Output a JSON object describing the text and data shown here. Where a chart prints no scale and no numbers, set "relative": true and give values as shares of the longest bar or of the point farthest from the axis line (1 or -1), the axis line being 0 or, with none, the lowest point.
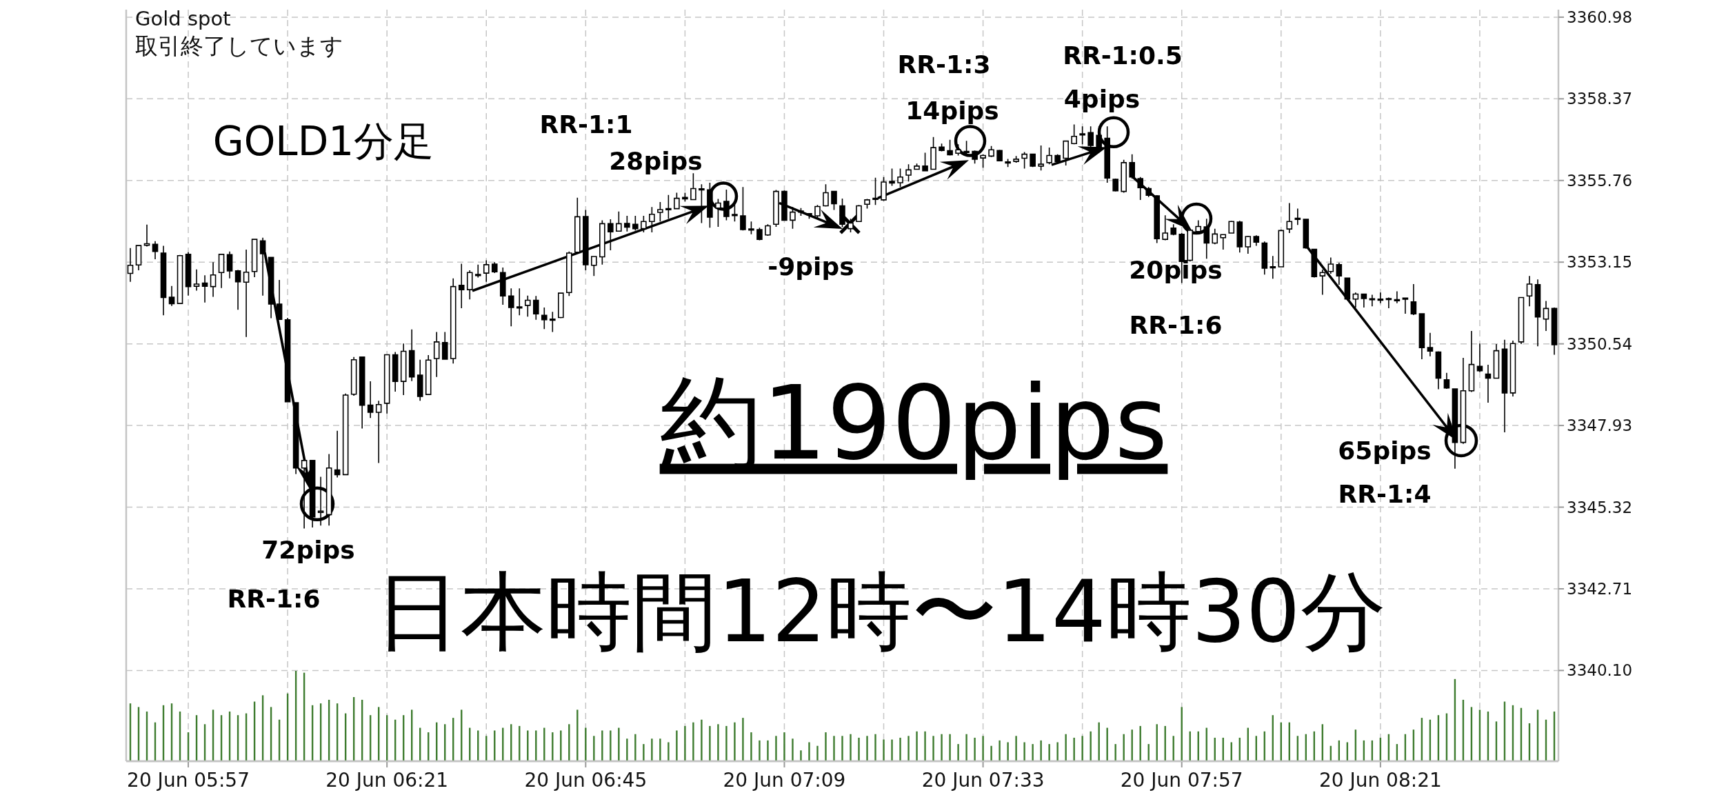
{
  "chart_data": [
    {
      "type": "candlestick",
      "title": "Gold spot",
      "subtitle": "取引終了しています",
      "categories": [
        null,
        null,
        null,
        null,
        null,
        null,
        null,
        "20 Jun 05:57",
        null,
        null,
        null,
        null,
        null,
        null,
        null,
        null,
        null,
        null,
        null,
        null,
        null,
        null,
        null,
        null,
        null,
        null,
        null,
        null,
        null,
        null,
        null,
        "20 Jun 06:21",
        null,
        null,
        null,
        null,
        null,
        null,
        null,
        null,
        null,
        null,
        null,
        null,
        null,
        null,
        null,
        null,
        null,
        null,
        null,
        null,
        null,
        null,
        null,
        "20 Jun 06:45",
        null,
        null,
        null,
        null,
        null,
        null,
        null,
        null,
        null,
        null,
        null,
        null,
        null,
        null,
        null,
        null,
        null,
        null,
        null,
        null,
        null,
        null,
        null,
        "20 Jun 07:09",
        null,
        null,
        null,
        null,
        null,
        null,
        null,
        null,
        null,
        null,
        null,
        null,
        null,
        null,
        null,
        null,
        null,
        null,
        null,
        null,
        null,
        null,
        null,
        "20 Jun 07:33",
        null,
        null,
        null,
        null,
        null,
        null,
        null,
        null,
        null,
        null,
        null,
        null,
        null,
        null,
        null,
        null,
        null,
        null,
        null,
        null,
        null,
        null,
        null,
        "20 Jun 07:57",
        null,
        null,
        null,
        null,
        null,
        null,
        null,
        null,
        null,
        null,
        null,
        null,
        null,
        null,
        null,
        null,
        null,
        null,
        null,
        null,
        null,
        null,
        null,
        "20 Jun 08:21",
        null,
        null,
        null,
        null,
        null,
        null,
        null,
        null,
        null,
        null,
        null,
        null,
        null,
        null,
        null,
        null,
        null,
        null,
        null,
        null,
        null
      ],
      "ohlc": [
        [
          3352.79,
          3353.6,
          3352.52,
          3353.05
        ],
        [
          3353.06,
          3353.68,
          3352.89,
          3353.68
        ],
        [
          3353.69,
          3354.35,
          3353.65,
          3353.74
        ],
        [
          3353.72,
          3353.82,
          3353.24,
          3353.49
        ],
        [
          3353.44,
          3353.67,
          3351.45,
          3352.02
        ],
        [
          3352.03,
          3352.39,
          3351.75,
          3351.82
        ],
        [
          3351.83,
          3353.38,
          3351.83,
          3353.36
        ],
        [
          3353.4,
          3353.47,
          3352.08,
          3352.37
        ],
        [
          3352.38,
          3352.92,
          3352.24,
          3352.45
        ],
        [
          3352.48,
          3352.73,
          3351.86,
          3352.38
        ],
        [
          3352.37,
          3353.15,
          3352.04,
          3352.74
        ],
        [
          3352.82,
          3353.4,
          3352.32,
          3353.4
        ],
        [
          3353.39,
          3353.49,
          3352.63,
          3352.87
        ],
        [
          3352.87,
          3352.9,
          3351.63,
          3352.52
        ],
        [
          3352.51,
          3353.55,
          3350.76,
          3352.83
        ],
        [
          3352.85,
          3353.9,
          3352.67,
          3353.88
        ],
        [
          3353.83,
          3353.93,
          3352.08,
          3353.42
        ],
        [
          3353.3,
          3353.3,
          3351.36,
          3351.81
        ],
        [
          3351.81,
          3352.58,
          3351.32,
          3351.32
        ],
        [
          3351.31,
          3351.37,
          3348.67,
          3348.69
        ],
        [
          3348.66,
          3348.67,
          3346.38,
          3346.57
        ],
        [
          3346.57,
          3346.91,
          3344.64,
          3346.81
        ],
        [
          3346.81,
          3346.82,
          3344.67,
          3345.01
        ],
        [
          3345.15,
          3346.29,
          3344.73,
          3345.19
        ],
        [
          3345.08,
          3347.02,
          3344.73,
          3346.57
        ],
        [
          3346.51,
          3347.76,
          3346.27,
          3346.36
        ],
        [
          3346.36,
          3348.95,
          3346.36,
          3348.9
        ],
        [
          3348.93,
          3350.12,
          3348.88,
          3350.03
        ],
        [
          3350.12,
          3350.12,
          3347.83,
          3348.58
        ],
        [
          3348.58,
          3349.34,
          3348.17,
          3348.35
        ],
        [
          3348.35,
          3348.72,
          3346.73,
          3348.6
        ],
        [
          3348.64,
          3350.2,
          3348.31,
          3350.19
        ],
        [
          3350.19,
          3350.28,
          3349.01,
          3349.34
        ],
        [
          3349.34,
          3350.55,
          3348.9,
          3350.3
        ],
        [
          3350.32,
          3351.0,
          3349.35,
          3349.48
        ],
        [
          3349.54,
          3350.03,
          3348.72,
          3348.86
        ],
        [
          3348.92,
          3350.18,
          3348.92,
          3350.02
        ],
        [
          3350.07,
          3350.92,
          3349.48,
          3350.6
        ],
        [
          3350.58,
          3350.92,
          3350.05,
          3350.05
        ],
        [
          3350.07,
          3352.63,
          3349.91,
          3352.37
        ],
        [
          3352.41,
          3353.1,
          3351.68,
          3352.27
        ],
        [
          3352.27,
          3352.89,
          3351.96,
          3352.82
        ],
        [
          3352.73,
          3353.07,
          3352.66,
          3352.75
        ],
        [
          3352.8,
          3353.21,
          3352.52,
          3353.07
        ],
        [
          3353.09,
          3353.15,
          3352.8,
          3352.84
        ],
        [
          3352.82,
          3352.98,
          3351.79,
          3352.07
        ],
        [
          3352.07,
          3352.31,
          3351.1,
          3351.7
        ],
        [
          3351.71,
          3352.31,
          3351.45,
          3351.7
        ],
        [
          3351.77,
          3352.08,
          3351.41,
          3351.93
        ],
        [
          3351.93,
          3352.07,
          3351.31,
          3351.5
        ],
        [
          3351.45,
          3351.7,
          3351.01,
          3351.31
        ],
        [
          3351.31,
          3351.56,
          3350.92,
          3351.31
        ],
        [
          3351.38,
          3352.16,
          3351.36,
          3352.16
        ],
        [
          3352.18,
          3353.49,
          3352.07,
          3353.44
        ],
        [
          3353.47,
          3355.21,
          3353.44,
          3354.6
        ],
        [
          3354.61,
          3354.82,
          3352.89,
          3353.07
        ],
        [
          3353.05,
          3353.33,
          3352.71,
          3353.33
        ],
        [
          3353.32,
          3354.49,
          3353.07,
          3354.38
        ],
        [
          3354.38,
          3354.52,
          3353.53,
          3354.12
        ],
        [
          3354.14,
          3354.77,
          3354.13,
          3354.38
        ],
        [
          3354.39,
          3354.63,
          3354.13,
          3354.27
        ],
        [
          3354.36,
          3354.63,
          3354.16,
          3354.22
        ],
        [
          3354.22,
          3354.63,
          3354.1,
          3354.45
        ],
        [
          3354.45,
          3354.91,
          3354.1,
          3354.68
        ],
        [
          3354.74,
          3355.07,
          3354.45,
          3354.83
        ],
        [
          3354.84,
          3355.3,
          3354.54,
          3354.85
        ],
        [
          3354.86,
          3355.37,
          3354.86,
          3355.19
        ],
        [
          3355.22,
          3355.37,
          3355.09,
          3355.17
        ],
        [
          3355.15,
          3355.99,
          3355.14,
          3355.5
        ],
        [
          3355.48,
          3355.64,
          3354.4,
          3355.47
        ],
        [
          3355.46,
          3355.69,
          3354.25,
          3354.59
        ],
        [
          3354.88,
          3355.17,
          3354.28,
          3355.04
        ],
        [
          3355.09,
          3355.47,
          3354.49,
          3354.61
        ],
        [
          3354.66,
          3355.0,
          3354.45,
          3354.65
        ],
        [
          3354.63,
          3355.55,
          3354.16,
          3354.19
        ],
        [
          3354.2,
          3354.45,
          3354.04,
          3354.19
        ],
        [
          3354.19,
          3354.25,
          3353.85,
          3353.88
        ],
        [
          3354.02,
          3354.36,
          3353.99,
          3354.31
        ],
        [
          3354.36,
          3355.46,
          3354.28,
          3355.41
        ],
        [
          3355.41,
          3355.44,
          3354.47,
          3354.49
        ],
        [
          3354.49,
          3354.91,
          3354.22,
          3354.75
        ],
        [
          3354.76,
          3354.88,
          3354.63,
          3354.77
        ],
        [
          3354.69,
          3354.72,
          3354.54,
          3354.68
        ],
        [
          3354.63,
          3354.98,
          3354.54,
          3354.93
        ],
        [
          3354.95,
          3355.64,
          3354.93,
          3355.37
        ],
        [
          3355.41,
          3355.41,
          3354.82,
          3355.02
        ],
        [
          3354.95,
          3355.18,
          3354.27,
          3354.36
        ],
        [
          3354.22,
          3354.54,
          3354.1,
          3354.4
        ],
        [
          3354.45,
          3354.98,
          3354.43,
          3354.95
        ],
        [
          3355.0,
          3355.17,
          3354.86,
          3355.14
        ],
        [
          3355.17,
          3355.85,
          3354.98,
          3355.18
        ],
        [
          3355.14,
          3355.87,
          3355.11,
          3355.71
        ],
        [
          3355.73,
          3356.14,
          3355.59,
          3355.68
        ],
        [
          3355.69,
          3356.14,
          3355.55,
          3355.87
        ],
        [
          3355.93,
          3356.28,
          3355.73,
          3356.1
        ],
        [
          3356.12,
          3356.3,
          3356.1,
          3356.22
        ],
        [
          3356.22,
          3356.65,
          3356.05,
          3356.07
        ],
        [
          3356.12,
          3357.15,
          3356.1,
          3356.81
        ],
        [
          3356.83,
          3356.94,
          3356.69,
          3356.72
        ],
        [
          3356.71,
          3357.06,
          3356.56,
          3356.58
        ],
        [
          3356.63,
          3356.92,
          3356.56,
          3356.74
        ],
        [
          3356.67,
          3357.03,
          3356.6,
          3356.67
        ],
        [
          3356.69,
          3356.72,
          3356.3,
          3356.44
        ],
        [
          3356.48,
          3356.6,
          3356.17,
          3356.56
        ],
        [
          3356.54,
          3356.86,
          3356.51,
          3356.74
        ],
        [
          3356.72,
          3356.74,
          3356.37,
          3356.39
        ],
        [
          3356.34,
          3356.45,
          3356.19,
          3356.33
        ],
        [
          3356.37,
          3356.54,
          3356.33,
          3356.44
        ],
        [
          3356.47,
          3356.67,
          3356.14,
          3356.6
        ],
        [
          3356.6,
          3356.62,
          3356.19,
          3356.22
        ],
        [
          3356.22,
          3356.88,
          3356.08,
          3356.28
        ],
        [
          3356.33,
          3356.81,
          3356.28,
          3356.56
        ],
        [
          3356.56,
          3356.6,
          3356.33,
          3356.36
        ],
        [
          3356.47,
          3357.02,
          3356.24,
          3357.02
        ],
        [
          3356.94,
          3357.55,
          3356.92,
          3357.17
        ],
        [
          3357.22,
          3357.49,
          3356.92,
          3357.25
        ],
        [
          3357.29,
          3357.49,
          3356.83,
          3356.88
        ],
        [
          3357.2,
          3357.49,
          3356.65,
          3356.83
        ],
        [
          3357.11,
          3357.49,
          3355.69,
          3355.84
        ],
        [
          3355.8,
          3355.82,
          3355.41,
          3355.43
        ],
        [
          3355.41,
          3356.42,
          3355.37,
          3356.33
        ],
        [
          3356.33,
          3356.6,
          3355.82,
          3355.87
        ],
        [
          3355.82,
          3355.87,
          3355.14,
          3355.53
        ],
        [
          3355.5,
          3355.55,
          3355.23,
          3355.29
        ],
        [
          3355.27,
          3355.29,
          3353.76,
          3353.9
        ],
        [
          3353.88,
          3354.65,
          3353.85,
          3354.08
        ],
        [
          3354.24,
          3354.36,
          3354.01,
          3354.04
        ],
        [
          3354.04,
          3354.08,
          3352.48,
          3353.17
        ],
        [
          3353.21,
          3354.22,
          3353.17,
          3354.17
        ],
        [
          3354.13,
          3354.49,
          3354.08,
          3354.29
        ],
        [
          3354.28,
          3354.54,
          3353.26,
          3353.76
        ],
        [
          3353.76,
          3354.22,
          3353.72,
          3354.05
        ],
        [
          3353.93,
          3354.03,
          3353.55,
          3354.03
        ],
        [
          3354.08,
          3354.47,
          3354.08,
          3354.45
        ],
        [
          3354.43,
          3354.47,
          3353.46,
          3353.64
        ],
        [
          3353.64,
          3353.99,
          3353.42,
          3353.97
        ],
        [
          3353.97,
          3354.01,
          3353.67,
          3353.79
        ],
        [
          3353.76,
          3353.81,
          3352.75,
          3352.96
        ],
        [
          3352.99,
          3353.35,
          3352.62,
          3352.98
        ],
        [
          3353.0,
          3354.19,
          3353.0,
          3354.16
        ],
        [
          3354.21,
          3355.04,
          3354.08,
          3354.45
        ],
        [
          3354.53,
          3354.86,
          3354.34,
          3354.54
        ],
        [
          3354.52,
          3354.54,
          3353.58,
          3353.61
        ],
        [
          3353.56,
          3353.58,
          3352.66,
          3352.69
        ],
        [
          3352.71,
          3352.91,
          3352.11,
          3352.82
        ],
        [
          3352.85,
          3353.3,
          3352.78,
          3353.09
        ],
        [
          3353.07,
          3353.13,
          3352.43,
          3352.71
        ],
        [
          3352.64,
          3352.66,
          3351.93,
          3351.97
        ],
        [
          3351.97,
          3352.18,
          3351.7,
          3352.13
        ],
        [
          3352.13,
          3352.13,
          3351.7,
          3351.99
        ],
        [
          3351.97,
          3352.11,
          3351.74,
          3351.96
        ],
        [
          3351.95,
          3352.18,
          3351.84,
          3351.95
        ],
        [
          3351.97,
          3352.02,
          3351.68,
          3351.97
        ],
        [
          3351.94,
          3352.22,
          3351.84,
          3351.93
        ],
        [
          3352.0,
          3352.02,
          3351.5,
          3351.97
        ],
        [
          3351.88,
          3352.45,
          3351.46,
          3351.5
        ],
        [
          3351.5,
          3351.52,
          3350.05,
          3350.42
        ],
        [
          3350.42,
          3350.89,
          3350.14,
          3350.31
        ],
        [
          3350.28,
          3350.3,
          3349.09,
          3349.44
        ],
        [
          3349.39,
          3349.61,
          3349.1,
          3349.13
        ],
        [
          3349.1,
          3349.1,
          3346.55,
          3347.39
        ],
        [
          3347.39,
          3350.09,
          3347.34,
          3349.04
        ],
        [
          3349.04,
          3350.95,
          3349.0,
          3349.88
        ],
        [
          3349.82,
          3350.55,
          3349.64,
          3349.68
        ],
        [
          3349.57,
          3349.87,
          3348.66,
          3349.44
        ],
        [
          3349.44,
          3350.53,
          3349.44,
          3350.32
        ],
        [
          3350.37,
          3350.67,
          3347.71,
          3348.97
        ],
        [
          3348.97,
          3350.64,
          3348.86,
          3350.55
        ],
        [
          3350.6,
          3352.02,
          3350.53,
          3352.02
        ],
        [
          3352.07,
          3352.71,
          3351.74,
          3352.45
        ],
        [
          3352.43,
          3352.6,
          3350.46,
          3351.4
        ],
        [
          3351.33,
          3351.91,
          3350.95,
          3351.67
        ],
        [
          3351.67,
          3351.7,
          3350.19,
          3350.51
        ]
      ],
      "colors": [
        "#ffffff",
        "#ffffff",
        "#ffffff",
        "#000000",
        "#000000",
        "#000000",
        "#ffffff",
        "#000000",
        "#ffffff",
        "#000000",
        "#ffffff",
        "#ffffff",
        "#000000",
        "#000000",
        "#ffffff",
        "#ffffff",
        "#000000",
        "#000000",
        "#000000",
        "#000000",
        "#000000",
        "#ffffff",
        "#000000",
        "#ffffff",
        "#ffffff",
        "#000000",
        "#ffffff",
        "#ffffff",
        "#000000",
        "#000000",
        "#ffffff",
        "#ffffff",
        "#000000",
        "#ffffff",
        "#000000",
        "#000000",
        "#ffffff",
        "#ffffff",
        "#000000",
        "#ffffff",
        "#000000",
        "#ffffff",
        "#ffffff",
        "#ffffff",
        "#000000",
        "#000000",
        "#000000",
        "#000000",
        "#ffffff",
        "#000000",
        "#000000",
        "#000000",
        "#ffffff",
        "#ffffff",
        "#ffffff",
        "#000000",
        "#ffffff",
        "#ffffff",
        "#000000",
        "#ffffff",
        "#000000",
        "#000000",
        "#ffffff",
        "#ffffff",
        "#ffffff",
        "#ffffff",
        "#ffffff",
        "#000000",
        "#ffffff",
        "#000000",
        "#000000",
        "#ffffff",
        "#000000",
        "#000000",
        "#000000",
        "#000000",
        "#000000",
        "#ffffff",
        "#ffffff",
        "#000000",
        "#ffffff",
        "#ffffff",
        "#000000",
        "#ffffff",
        "#ffffff",
        "#000000",
        "#000000",
        "#ffffff",
        "#ffffff",
        "#ffffff",
        "#ffffff",
        "#ffffff",
        "#000000",
        "#ffffff",
        "#ffffff",
        "#ffffff",
        "#000000",
        "#ffffff",
        "#000000",
        "#000000",
        "#ffffff",
        "#000000",
        "#000000",
        "#ffffff",
        "#ffffff",
        "#000000",
        "#000000",
        "#ffffff",
        "#ffffff",
        "#000000",
        "#ffffff",
        "#ffffff",
        "#000000",
        "#ffffff",
        "#ffffff",
        "#ffffff",
        "#000000",
        "#000000",
        "#000000",
        "#000000",
        "#ffffff",
        "#000000",
        "#000000",
        "#000000",
        "#000000",
        "#ffffff",
        "#000000",
        "#000000",
        "#ffffff",
        "#ffffff",
        "#000000",
        "#ffffff",
        "#ffffff",
        "#ffffff",
        "#000000",
        "#ffffff",
        "#000000",
        "#000000",
        "#000000",
        "#ffffff",
        "#ffffff",
        "#ffffff",
        "#000000",
        "#000000",
        "#ffffff",
        "#ffffff",
        "#000000",
        "#000000",
        "#ffffff",
        "#000000",
        "#000000",
        "#000000",
        "#000000",
        "#000000",
        "#000000",
        "#000000",
        "#000000",
        "#000000",
        "#000000",
        "#000000",
        "#000000",
        "#ffffff",
        "#ffffff",
        "#000000",
        "#000000",
        "#ffffff",
        "#000000",
        "#ffffff",
        "#ffffff",
        "#ffffff",
        "#000000",
        "#ffffff",
        "#000000"
      ],
      "ylim": [
        3337.2,
        3361.22
      ],
      "yticks": [
        {
          "value": 3340.1,
          "label": "3340.10"
        },
        3342.71,
        3345.32,
        3347.93,
        3350.54,
        3353.15,
        3355.76,
        3358.37,
        3360.98
      ],
      "grid": true,
      "annotations": [
        "GOLD1分足",
        "RR-1:1",
        "28pips",
        "RR-1:3",
        "14pips",
        "RR-1:0.5",
        "4pips",
        "-9pips",
        "20pips",
        "RR-1:6",
        "72pips",
        "RR-1:6",
        "65pips",
        "RR-1:4",
        "約190pips",
        "日本時間12時〜14時30分"
      ]
    },
    {
      "type": "bar",
      "relative": true,
      "color": "#3d7b2e",
      "categories": [
        null,
        null,
        null,
        null,
        null,
        null,
        null,
        null,
        null,
        null,
        null,
        null,
        null,
        null,
        null,
        null,
        null,
        null,
        null,
        null,
        null,
        null,
        null,
        null,
        null,
        null,
        null,
        null,
        null,
        null,
        null,
        null,
        null,
        null,
        null,
        null,
        null,
        null,
        null,
        null,
        null,
        null,
        null,
        null,
        null,
        null,
        null,
        null,
        null,
        null,
        null,
        null,
        null,
        null,
        null,
        null,
        null,
        null,
        null,
        null,
        null,
        null,
        null,
        null,
        null,
        null,
        null,
        null,
        null,
        null,
        null,
        null,
        null,
        null,
        null,
        null,
        null,
        null,
        null,
        null,
        null,
        null,
        null,
        null,
        null,
        null,
        null,
        null,
        null,
        null,
        null,
        null,
        null,
        null,
        null,
        null,
        null,
        null,
        null,
        null,
        null,
        null,
        null,
        null,
        null,
        null,
        null,
        null,
        null,
        null,
        null,
        null,
        null,
        null,
        null,
        null,
        null,
        null,
        null,
        null,
        null,
        null,
        null,
        null,
        null,
        null,
        null,
        null,
        null,
        null,
        null,
        null,
        null,
        null,
        null,
        null,
        null,
        null,
        null,
        null,
        null,
        null,
        null,
        null,
        null,
        null,
        null,
        null,
        null,
        null,
        null,
        null,
        null,
        null,
        null,
        null,
        null,
        null,
        null,
        null,
        null,
        null,
        null,
        null,
        null,
        null,
        null,
        null,
        null,
        null,
        null,
        null,
        null
      ],
      "values": [
        0.64,
        0.6,
        0.55,
        0.43,
        0.62,
        0.64,
        0.55,
        0.32,
        0.51,
        0.41,
        0.57,
        0.51,
        0.55,
        0.51,
        0.53,
        0.66,
        0.73,
        0.6,
        0.46,
        0.75,
        1,
        0.98,
        0.62,
        0.64,
        0.68,
        0.64,
        0.53,
        0.71,
        0.68,
        0.51,
        0.6,
        0.51,
        0.46,
        0.51,
        0.57,
        0.37,
        0.32,
        0.43,
        0.41,
        0.48,
        0.57,
        0.37,
        0.34,
        0.28,
        0.34,
        0.37,
        0.41,
        0.39,
        0.34,
        0.34,
        0.37,
        0.32,
        0.34,
        0.41,
        0.57,
        0.37,
        0.28,
        0.34,
        0.34,
        0.37,
        0.25,
        0.3,
        0.19,
        0.25,
        0.25,
        0.21,
        0.34,
        0.39,
        0.43,
        0.46,
        0.39,
        0.41,
        0.39,
        0.43,
        0.48,
        0.32,
        0.23,
        0.23,
        0.28,
        0.32,
        0.25,
        0.12,
        0.21,
        0.17,
        0.32,
        0.28,
        0.28,
        0.3,
        0.26,
        0.28,
        0.3,
        0.24,
        0.24,
        0.26,
        0.28,
        0.33,
        0.33,
        0.28,
        0.3,
        0.3,
        0.19,
        0.3,
        0.26,
        0.28,
        0.17,
        0.23,
        0.21,
        0.28,
        0.21,
        0.19,
        0.23,
        0.19,
        0.21,
        0.3,
        0.26,
        0.28,
        0.33,
        0.43,
        0.37,
        0.19,
        0.3,
        0.35,
        0.39,
        0.19,
        0.41,
        0.39,
        0.28,
        0.6,
        0.33,
        0.33,
        0.37,
        0.26,
        0.26,
        0.21,
        0.26,
        0.37,
        0.28,
        0.33,
        0.51,
        0.43,
        0.43,
        0.28,
        0.3,
        0.33,
        0.41,
        0.17,
        0.23,
        0.21,
        0.35,
        0.23,
        0.23,
        0.26,
        0.3,
        0.19,
        0.3,
        0.35,
        0.48,
        0.46,
        0.51,
        0.53,
        0.91,
        0.68,
        0.6,
        0.57,
        0.55,
        0.44,
        0.66,
        0.62,
        0.59,
        0.42,
        0.57,
        0.46,
        0.55
      ]
    }
  ]
}
